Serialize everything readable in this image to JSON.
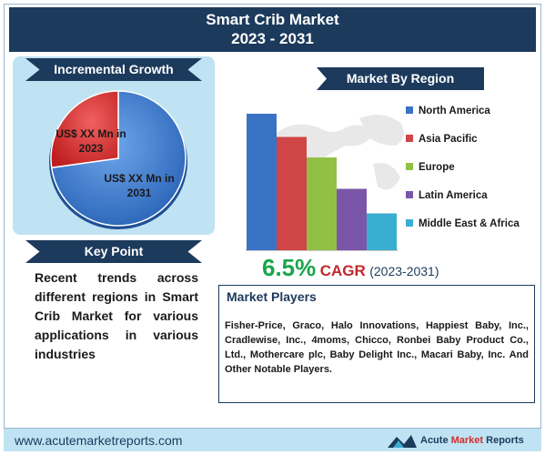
{
  "title": {
    "line1": "Smart Crib Market",
    "line2": "2023 - 2031"
  },
  "incremental_growth": {
    "heading": "Incremental Growth",
    "label_2023": "US$ XX Mn in 2023",
    "label_2031": "US$ XX Mn in 2031",
    "colors": {
      "slice_2023": "#e03030",
      "slice_2031": "#3d7ed6"
    }
  },
  "key_point": {
    "heading": "Key Point",
    "text": "Recent trends across different regions in Smart Crib Market for various applications in various industries"
  },
  "market_by_region": {
    "heading": "Market By Region",
    "legend": [
      {
        "label": "North America",
        "color": "#3b73c4"
      },
      {
        "label": "Asia Pacific",
        "color": "#d04545"
      },
      {
        "label": "Europe",
        "color": "#92c047"
      },
      {
        "label": "Latin America",
        "color": "#7a56a8"
      },
      {
        "label": "Middle East & Africa",
        "color": "#3aaed1"
      }
    ]
  },
  "chart_data": {
    "type": "bar",
    "categories": [
      "North America",
      "Asia Pacific",
      "Europe",
      "Latin America",
      "Middle East & Africa"
    ],
    "values": [
      100,
      83,
      68,
      45,
      27
    ],
    "title": "",
    "xlabel": "",
    "ylabel": "",
    "ylim": [
      0,
      100
    ],
    "grid": false
  },
  "cagr": {
    "value": "6.5%",
    "label": "CAGR",
    "period": "(2023-2031)"
  },
  "market_players": {
    "heading": "Market Players",
    "text": "Fisher-Price, Graco, Halo Innovations, Happiest Baby, Inc., Cradlewise, Inc., 4moms, Chicco, Ronbei Baby Product Co., Ltd., Mothercare plc, Baby Delight Inc., Macari Baby, Inc. And Other Notable Players."
  },
  "footer": {
    "url": "www.acutemarketreports.com",
    "brand_prefix": "Acute ",
    "brand_highlight": "Market",
    "brand_suffix": " Reports"
  }
}
